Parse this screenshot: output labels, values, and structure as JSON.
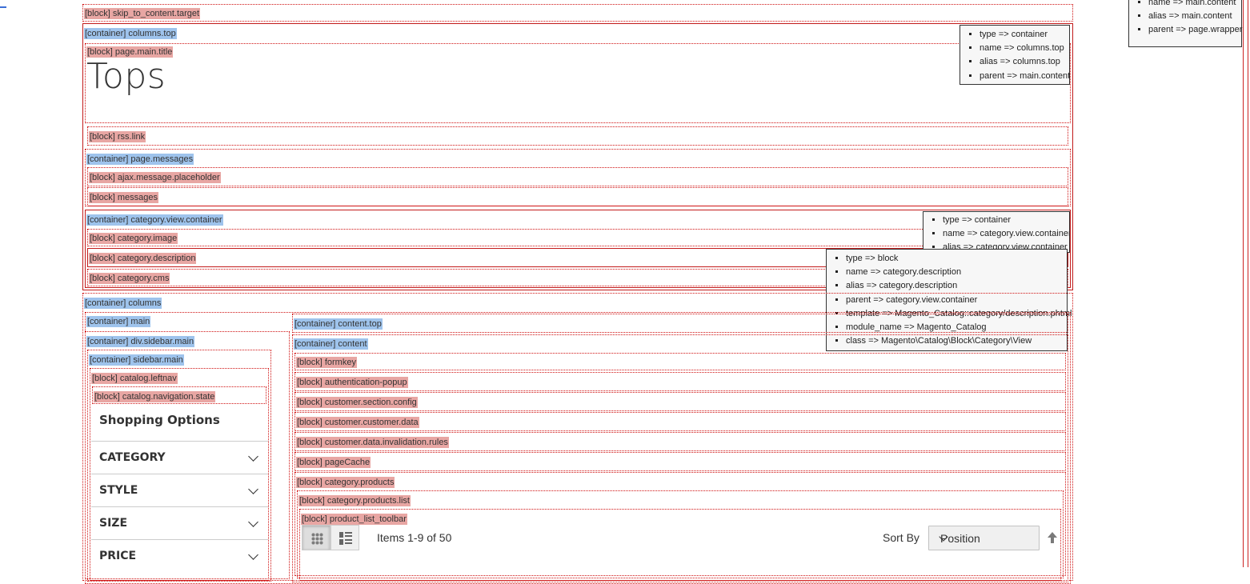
{
  "labels": {
    "skip": "[block] skip_to_content.target",
    "columns_top": "[container] columns.top",
    "page_main_title": "[block] page.main.title",
    "rss_link": "[block] rss.link",
    "page_messages": "[container] page.messages",
    "ajax_placeholder": "[block] ajax.message.placeholder",
    "messages": "[block] messages",
    "category_view_container": "[container] category.view.container",
    "category_image": "[block] category.image",
    "category_description": "[block] category.description",
    "category_cms": "[block] category.cms",
    "columns": "[container] columns",
    "main": "[container] main",
    "content_top": "[container] content.top",
    "div_sidebar_main": "[container] div.sidebar.main",
    "content": "[container] content",
    "sidebar_main": "[container] sidebar.main",
    "catalog_leftnav": "[block] catalog.leftnav",
    "catalog_navigation_state": "[block] catalog.navigation.state",
    "formkey": "[block] formkey",
    "authentication_popup": "[block] authentication-popup",
    "customer_section_config": "[block] customer.section.config",
    "customer_customer_data": "[block] customer.customer.data",
    "customer_data_invalidation_rules": "[block] customer.data.invalidation.rules",
    "page_cache": "[block] pageCache",
    "category_products": "[block] category.products",
    "category_products_list": "[block] category.products.list",
    "product_list_toolbar": "[block] product_list_toolbar"
  },
  "page_title": "Tops",
  "tooltips": {
    "main_content": [
      "name => main.content",
      "alias => main.content",
      "parent => page.wrapper"
    ],
    "columns_top": [
      "type => container",
      "name => columns.top",
      "alias => columns.top",
      "parent => main.content"
    ],
    "category_view_container": [
      "type => container",
      "name => category.view.container",
      "alias => category.view.container"
    ],
    "category_description": [
      "type => block",
      "name => category.description",
      "alias => category.description",
      "parent => category.view.container",
      "template => Magento_Catalog::category/description.phtml",
      "module_name => Magento_Catalog",
      "class => Magento\\Catalog\\Block\\Category\\View"
    ]
  },
  "sidebar": {
    "title": "Shopping Options",
    "filters": [
      "CATEGORY",
      "STYLE",
      "SIZE",
      "PRICE"
    ]
  },
  "toolbar": {
    "items_text": "Items 1-9 of 50",
    "sort_label": "Sort By",
    "sort_value": "Position"
  },
  "colors": {
    "block_label_bg": "#e8a6a3",
    "container_label_bg": "#9ec3ec",
    "outline": "#d01414"
  }
}
